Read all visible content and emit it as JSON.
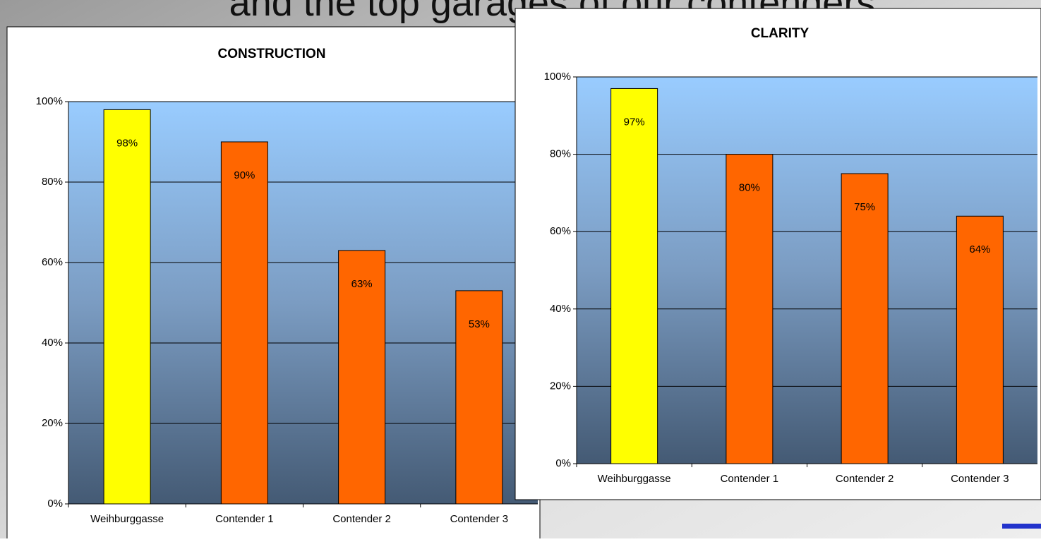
{
  "slide": {
    "heading": "and the top garages of our contenders."
  },
  "chart_data": [
    {
      "type": "bar",
      "title": "CONSTRUCTION",
      "categories": [
        "Weihburggasse",
        "Contender 1",
        "Contender 2",
        "Contender 3"
      ],
      "values": [
        98,
        90,
        63,
        53
      ],
      "value_labels": [
        "98%",
        "90%",
        "63%",
        "53%"
      ],
      "colors": [
        "#ffff00",
        "#ff6600",
        "#ff6600",
        "#ff6600"
      ],
      "ylim": [
        0,
        100
      ],
      "yticks": [
        {
          "value": 0,
          "label": "0%"
        },
        {
          "value": 20,
          "label": "20%"
        },
        {
          "value": 40,
          "label": "40%"
        },
        {
          "value": 60,
          "label": "60%"
        },
        {
          "value": 80,
          "label": "80%"
        },
        {
          "value": 100,
          "label": "100%"
        }
      ],
      "grid": true
    },
    {
      "type": "bar",
      "title": "CLARITY",
      "categories": [
        "Weihburggasse",
        "Contender 1",
        "Contender 2",
        "Contender 3"
      ],
      "values": [
        97,
        80,
        75,
        64
      ],
      "value_labels": [
        "97%",
        "80%",
        "75%",
        "64%"
      ],
      "colors": [
        "#ffff00",
        "#ff6600",
        "#ff6600",
        "#ff6600"
      ],
      "ylim": [
        0,
        100
      ],
      "yticks": [
        {
          "value": 0,
          "label": "0%"
        },
        {
          "value": 20,
          "label": "20%"
        },
        {
          "value": 40,
          "label": "40%"
        },
        {
          "value": 60,
          "label": "60%"
        },
        {
          "value": 80,
          "label": "80%"
        },
        {
          "value": 100,
          "label": "100%"
        }
      ],
      "grid": true
    }
  ]
}
